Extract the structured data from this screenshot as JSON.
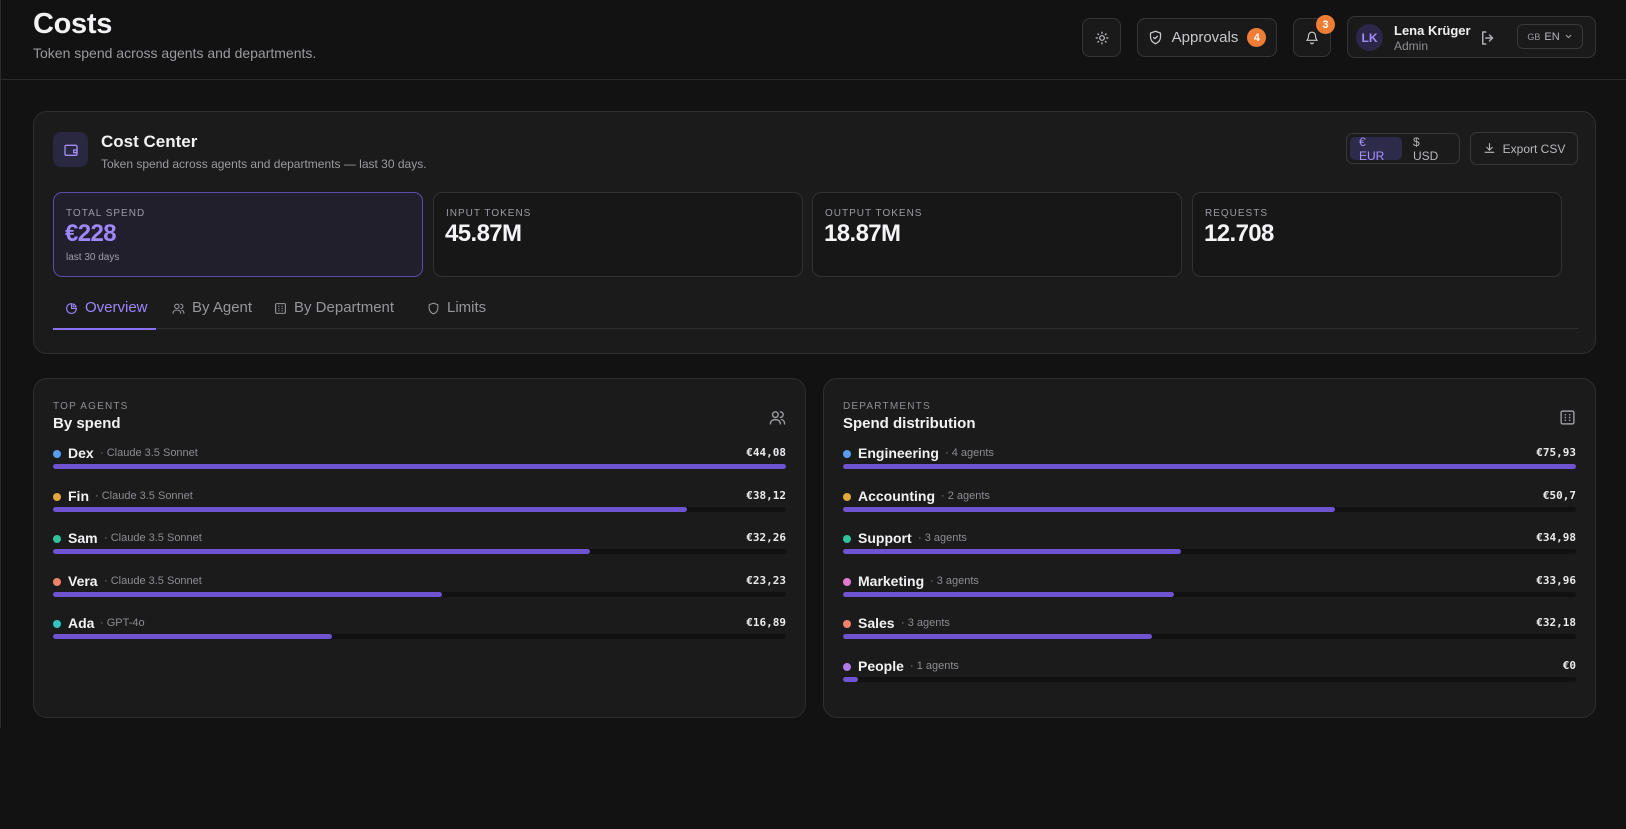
{
  "header": {
    "title": "Costs",
    "subtitle": "Token spend across agents and departments.",
    "approvals_label": "Approvals",
    "approvals_count": "4",
    "notifications_count": "3",
    "user": {
      "initials": "LK",
      "name": "Lena Krüger",
      "role": "Admin"
    },
    "language": {
      "flag": "GB",
      "code": "EN"
    }
  },
  "cost_center": {
    "title": "Cost Center",
    "subtitle": "Token spend across agents and departments — last 30 days.",
    "currencies": [
      "€ EUR",
      "$ USD"
    ],
    "active_currency": "€ EUR",
    "export_label": "Export CSV",
    "stats": [
      {
        "label": "TOTAL SPEND",
        "value": "€228",
        "note": "last 30 days"
      },
      {
        "label": "INPUT TOKENS",
        "value": "45.87M"
      },
      {
        "label": "OUTPUT TOKENS",
        "value": "18.87M"
      },
      {
        "label": "REQUESTS",
        "value": "12.708"
      }
    ],
    "tabs": [
      {
        "label": "Overview",
        "icon": "chart-icon",
        "active": true
      },
      {
        "label": "By Agent",
        "icon": "users-icon",
        "active": false
      },
      {
        "label": "By Department",
        "icon": "building-icon",
        "active": false
      },
      {
        "label": "Limits",
        "icon": "shield-icon",
        "active": false
      }
    ]
  },
  "top_agents": {
    "eyebrow": "TOP AGENTS",
    "title": "By spend",
    "icon": "users-icon",
    "rows": [
      {
        "name": "Dex",
        "meta": "· Claude 3.5 Sonnet",
        "amount": "€44,08",
        "share": 1.0,
        "color": "#5b9cf0"
      },
      {
        "name": "Fin",
        "meta": "· Claude 3.5 Sonnet",
        "amount": "€38,12",
        "share": 0.865,
        "color": "#e0a93a"
      },
      {
        "name": "Sam",
        "meta": "· Claude 3.5 Sonnet",
        "amount": "€32,26",
        "share": 0.732,
        "color": "#2ec59a"
      },
      {
        "name": "Vera",
        "meta": "· Claude 3.5 Sonnet",
        "amount": "€23,23",
        "share": 0.531,
        "color": "#f0826a"
      },
      {
        "name": "Ada",
        "meta": "· GPT-4o",
        "amount": "€16,89",
        "share": 0.38,
        "color": "#2bc7c0"
      }
    ]
  },
  "departments": {
    "eyebrow": "DEPARTMENTS",
    "title": "Spend distribution",
    "icon": "building-icon",
    "rows": [
      {
        "name": "Engineering",
        "meta": "· 4 agents",
        "amount": "€75,93",
        "share": 1.0,
        "color": "#5b9cf0"
      },
      {
        "name": "Accounting",
        "meta": "· 2 agents",
        "amount": "€50,7",
        "share": 0.671,
        "color": "#e0a93a"
      },
      {
        "name": "Support",
        "meta": "· 3 agents",
        "amount": "€34,98",
        "share": 0.461,
        "color": "#2ec59a"
      },
      {
        "name": "Marketing",
        "meta": "· 3 agents",
        "amount": "€33,96",
        "share": 0.451,
        "color": "#e07ad0"
      },
      {
        "name": "Sales",
        "meta": "· 3 agents",
        "amount": "€32,18",
        "share": 0.421,
        "color": "#f0826a"
      },
      {
        "name": "People",
        "meta": "· 1 agents",
        "amount": "€0",
        "share": 0.02,
        "color": "#b07ae8"
      }
    ]
  }
}
